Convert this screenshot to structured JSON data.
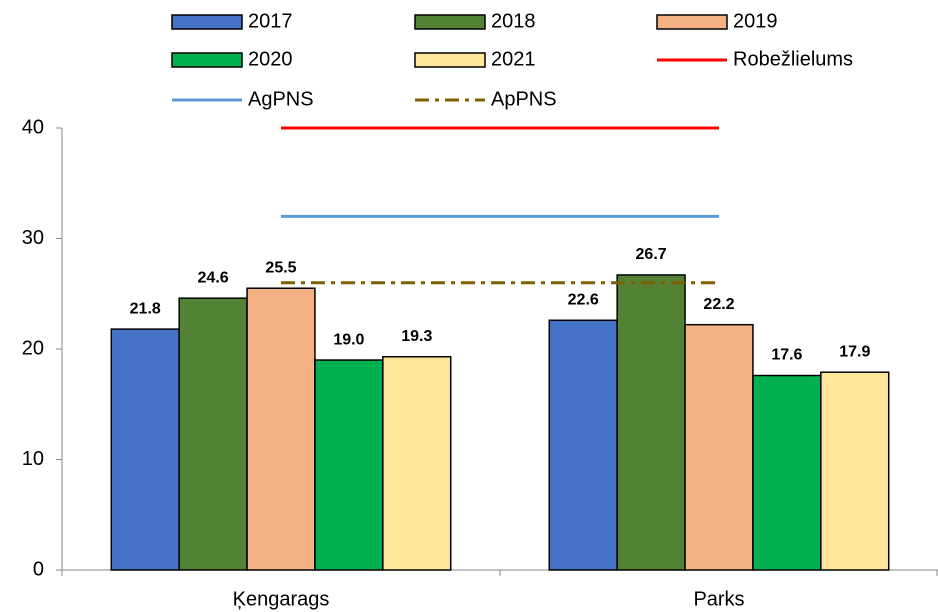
{
  "chart_data": {
    "type": "bar",
    "categories": [
      "Ķengarags",
      "Parks"
    ],
    "series": [
      {
        "name": "2017",
        "color": "#4472c4",
        "values": [
          21.8,
          22.6
        ],
        "value_labels": [
          "21.8",
          "22.6"
        ]
      },
      {
        "name": "2018",
        "color": "#548235",
        "values": [
          24.6,
          26.7
        ],
        "value_labels": [
          "24.6",
          "26.7"
        ]
      },
      {
        "name": "2019",
        "color": "#f4b183",
        "values": [
          25.5,
          22.2
        ],
        "value_labels": [
          "25.5",
          "22.2"
        ]
      },
      {
        "name": "2020",
        "color": "#00b050",
        "values": [
          19,
          17.6
        ],
        "value_labels": [
          "19.0",
          "17.6"
        ]
      },
      {
        "name": "2021",
        "color": "#ffe699",
        "values": [
          19.3,
          17.9
        ],
        "value_labels": [
          "19.3",
          "17.9"
        ]
      },
      {
        "name": "Robežlielums",
        "type": "line",
        "color": "#ff0000",
        "values": [
          40,
          40
        ]
      },
      {
        "name": "AgPNS",
        "type": "line",
        "color": "#5b9bd5",
        "values": [
          32,
          32
        ]
      },
      {
        "name": "ApPNS",
        "type": "line",
        "style": "dash-dot",
        "color": "#7f6000",
        "values": [
          26,
          26
        ]
      }
    ],
    "ylim": [
      0,
      40
    ],
    "yticks": [
      0,
      10,
      20,
      30,
      40
    ],
    "legend": "top"
  }
}
